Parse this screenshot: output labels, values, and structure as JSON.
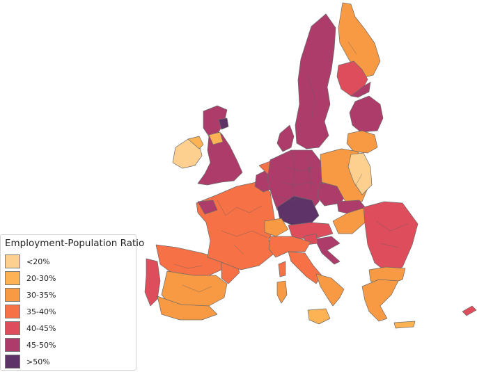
{
  "legend": {
    "title": "Employment-Population Ratio",
    "classes": [
      {
        "key": "c1",
        "label": "<20%",
        "color": "#fdd08f"
      },
      {
        "key": "c2",
        "label": "20-30%",
        "color": "#fdb354"
      },
      {
        "key": "c3",
        "label": "30-35%",
        "color": "#f89a43"
      },
      {
        "key": "c4",
        "label": "35-40%",
        "color": "#f67146"
      },
      {
        "key": "c5",
        "label": "40-45%",
        "color": "#dd4d5b"
      },
      {
        "key": "c6",
        "label": "45-50%",
        "color": "#ad3c6a"
      },
      {
        "key": "c7",
        "label": ">50%",
        "color": "#5e3367"
      }
    ]
  }
}
